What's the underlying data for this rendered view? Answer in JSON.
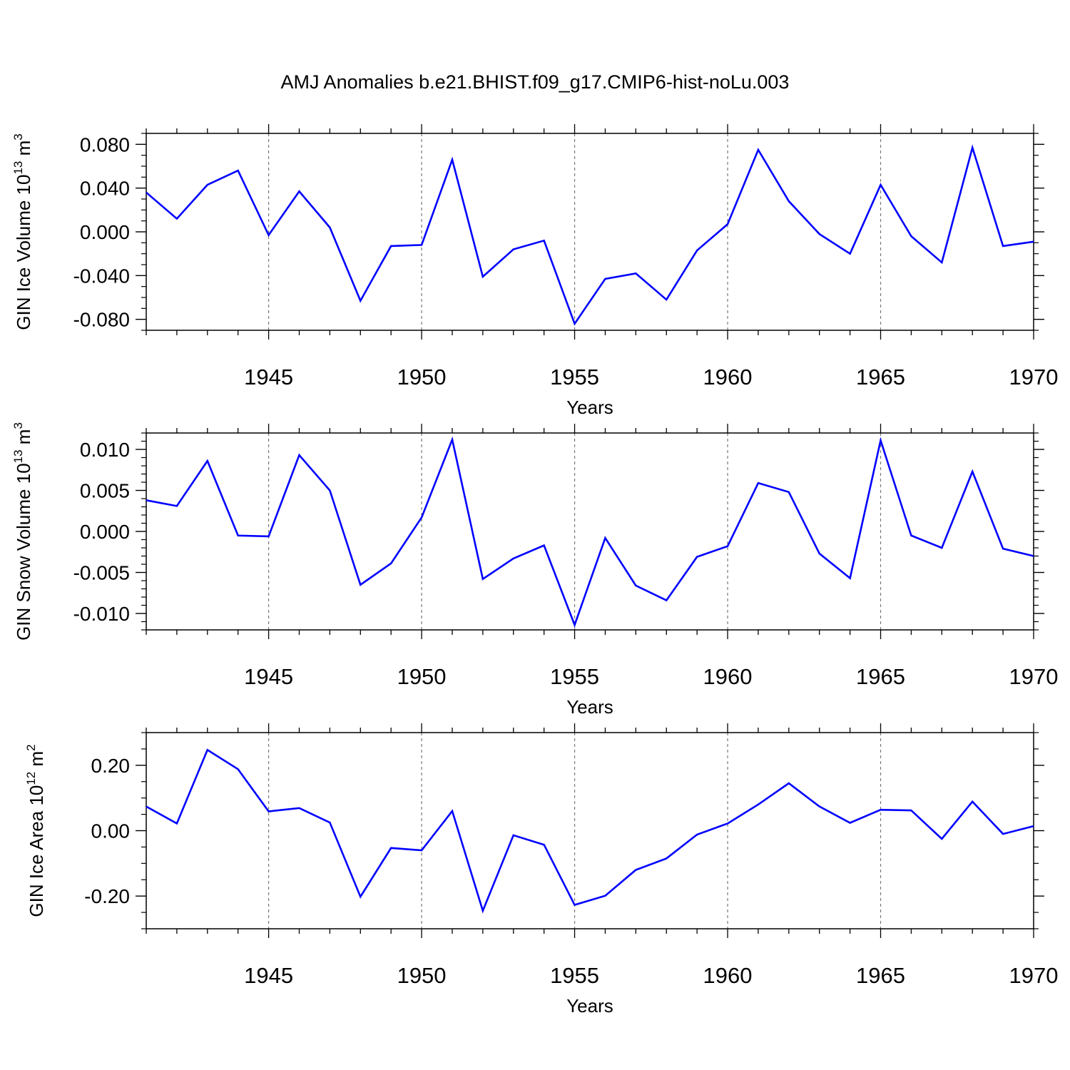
{
  "title": "AMJ Anomalies b.e21.BHIST.f09_g17.CMIP6-hist-noLu.003",
  "colors": {
    "line": "#0000ff",
    "axis": "#000000",
    "grid": "#777777"
  },
  "chart_data": [
    {
      "type": "line",
      "xlabel": "Years",
      "ylabel": {
        "prefix": "GIN Ice Volume 10",
        "exp": "13",
        "unit": " m",
        "unit_exp": "3"
      },
      "xlim": [
        1941,
        1970
      ],
      "ylim": [
        -0.09,
        0.09
      ],
      "yticks": [
        -0.08,
        -0.04,
        0.0,
        0.04,
        0.08
      ],
      "ytick_labels": [
        "-0.080",
        "-0.040",
        "0.000",
        "0.040",
        "0.080"
      ],
      "yminor_step": 0.01,
      "xticks": [
        1945,
        1950,
        1955,
        1960,
        1965,
        1970
      ],
      "xtick_labels": [
        "1945",
        "1950",
        "1955",
        "1960",
        "1965",
        "1970"
      ],
      "x": [
        1941,
        1942,
        1943,
        1944,
        1945,
        1946,
        1947,
        1948,
        1949,
        1950,
        1951,
        1952,
        1953,
        1954,
        1955,
        1956,
        1957,
        1958,
        1959,
        1960,
        1961,
        1962,
        1963,
        1964,
        1965,
        1966,
        1967,
        1968,
        1969,
        1970
      ],
      "series": [
        {
          "name": "GIN Ice Volume",
          "values": [
            0.036,
            0.012,
            0.043,
            0.056,
            -0.003,
            0.037,
            0.004,
            -0.063,
            -0.013,
            -0.012,
            0.066,
            -0.041,
            -0.016,
            -0.008,
            -0.084,
            -0.043,
            -0.038,
            -0.062,
            -0.017,
            0.007,
            0.075,
            0.028,
            -0.002,
            -0.02,
            0.043,
            -0.004,
            -0.028,
            0.077,
            -0.013,
            -0.009
          ]
        }
      ]
    },
    {
      "type": "line",
      "xlabel": "Years",
      "ylabel": {
        "prefix": "GIN Snow Volume 10",
        "exp": "13",
        "unit": " m",
        "unit_exp": "3"
      },
      "xlim": [
        1941,
        1970
      ],
      "ylim": [
        -0.012,
        0.012
      ],
      "yticks": [
        -0.01,
        -0.005,
        0.0,
        0.005,
        0.01
      ],
      "ytick_labels": [
        "-0.010",
        "-0.005",
        "0.000",
        "0.005",
        "0.010"
      ],
      "yminor_step": 0.001,
      "xticks": [
        1945,
        1950,
        1955,
        1960,
        1965,
        1970
      ],
      "xtick_labels": [
        "1945",
        "1950",
        "1955",
        "1960",
        "1965",
        "1970"
      ],
      "x": [
        1941,
        1942,
        1943,
        1944,
        1945,
        1946,
        1947,
        1948,
        1949,
        1950,
        1951,
        1952,
        1953,
        1954,
        1955,
        1956,
        1957,
        1958,
        1959,
        1960,
        1961,
        1962,
        1963,
        1964,
        1965,
        1966,
        1967,
        1968,
        1969,
        1970
      ],
      "series": [
        {
          "name": "GIN Snow Volume",
          "values": [
            0.0038,
            0.0031,
            0.0086,
            -0.0005,
            -0.0006,
            0.0093,
            0.005,
            -0.0065,
            -0.0039,
            0.0017,
            0.0112,
            -0.0058,
            -0.0033,
            -0.0017,
            -0.0114,
            -0.0008,
            -0.0066,
            -0.0084,
            -0.0031,
            -0.0018,
            0.0059,
            0.0048,
            -0.0027,
            -0.0057,
            0.0111,
            -0.0005,
            -0.002,
            0.0073,
            -0.0021,
            -0.003
          ]
        }
      ]
    },
    {
      "type": "line",
      "xlabel": "Years",
      "ylabel": {
        "prefix": "GIN Ice Area 10",
        "exp": "12",
        "unit": " m",
        "unit_exp": "2"
      },
      "xlim": [
        1941,
        1970
      ],
      "ylim": [
        -0.3,
        0.3
      ],
      "yticks": [
        -0.2,
        0.0,
        0.2
      ],
      "ytick_labels": [
        "-0.20",
        "0.00",
        "0.20"
      ],
      "yminor_step": 0.05,
      "xticks": [
        1945,
        1950,
        1955,
        1960,
        1965,
        1970
      ],
      "xtick_labels": [
        "1945",
        "1950",
        "1955",
        "1960",
        "1965",
        "1970"
      ],
      "x": [
        1941,
        1942,
        1943,
        1944,
        1945,
        1946,
        1947,
        1948,
        1949,
        1950,
        1951,
        1952,
        1953,
        1954,
        1955,
        1956,
        1957,
        1958,
        1959,
        1960,
        1961,
        1962,
        1963,
        1964,
        1965,
        1966,
        1967,
        1968,
        1969,
        1970
      ],
      "series": [
        {
          "name": "GIN Ice Area",
          "values": [
            0.074,
            0.022,
            0.247,
            0.188,
            0.059,
            0.069,
            0.025,
            -0.202,
            -0.053,
            -0.06,
            0.06,
            -0.245,
            -0.014,
            -0.043,
            -0.227,
            -0.199,
            -0.12,
            -0.085,
            -0.012,
            0.022,
            0.08,
            0.145,
            0.074,
            0.024,
            0.064,
            0.062,
            -0.025,
            0.089,
            -0.01,
            0.014
          ]
        }
      ]
    }
  ]
}
